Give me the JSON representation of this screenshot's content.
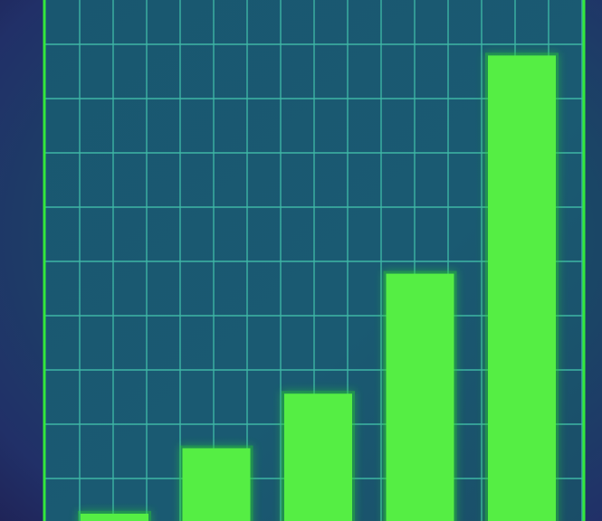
{
  "chart_data": {
    "type": "bar",
    "categories": [
      "",
      "",
      "",
      "",
      ""
    ],
    "values": [
      4,
      16,
      26,
      48,
      88
    ],
    "ylim": [
      0,
      100
    ],
    "grid": true,
    "legend": "none",
    "title": "",
    "xlabel": "",
    "ylabel": ""
  },
  "colors": {
    "background": "#1f2a5c",
    "plot_area": "#1b5470",
    "grid": "#3fb7a6",
    "frame": "#33e83c",
    "bar": "#55ee44",
    "bar_glow": "#2bd62f"
  }
}
